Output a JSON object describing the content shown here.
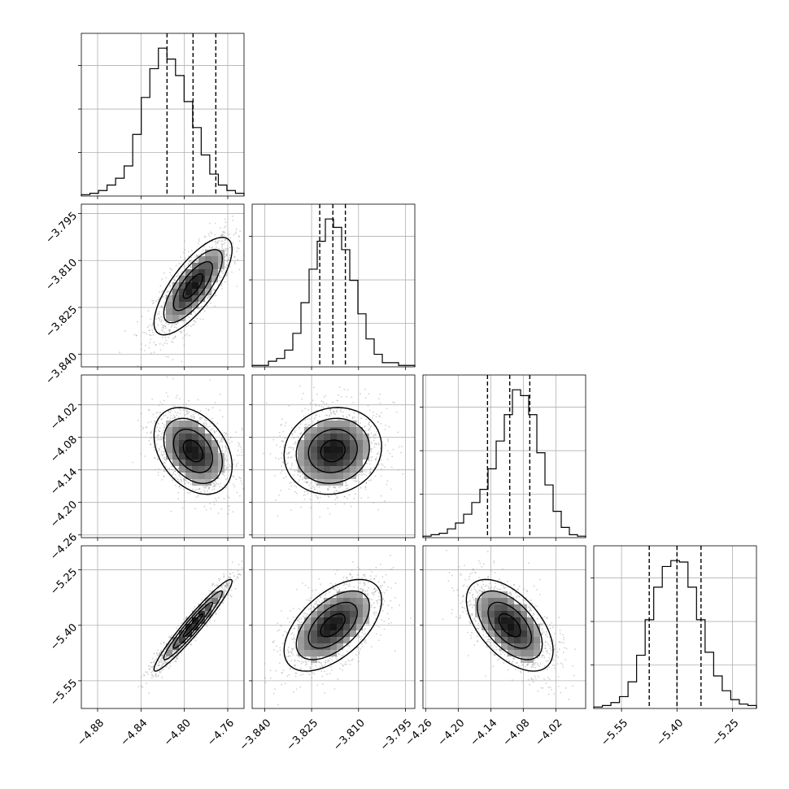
{
  "chart_data": {
    "type": "corner",
    "grid": true,
    "parameters": [
      {
        "range": [
          -4.895,
          -4.745
        ],
        "median": -4.792,
        "quantiles": [
          -4.816,
          -4.792,
          -4.771
        ],
        "ticks": [
          -4.88,
          -4.84,
          -4.8,
          -4.76
        ],
        "tick_labels": [
          "−4.88",
          "−4.84",
          "−4.80",
          "−4.76"
        ],
        "hist_bin_edges_count": 20,
        "hist_counts": [
          1,
          2,
          4,
          8,
          13,
          22,
          45,
          72,
          93,
          108,
          100,
          88,
          69,
          50,
          30,
          16,
          8,
          4,
          2
        ]
      },
      {
        "range": [
          -3.844,
          -3.792
        ],
        "median": -3.8182,
        "quantiles": [
          -3.8224,
          -3.8182,
          -3.8142
        ],
        "ticks": [
          -3.84,
          -3.825,
          -3.81,
          -3.795
        ],
        "tick_labels": [
          "−3.840",
          "−3.825",
          "−3.810",
          "−3.795"
        ],
        "hist_counts": [
          1,
          1,
          4,
          6,
          12,
          24,
          46,
          70,
          90,
          106,
          100,
          84,
          62,
          38,
          20,
          9,
          3,
          3,
          1,
          1
        ]
      },
      {
        "range": [
          -4.265,
          -3.965
        ],
        "median": -4.105,
        "quantiles": [
          -4.146,
          -4.105,
          -4.068
        ],
        "ticks": [
          -4.26,
          -4.2,
          -4.14,
          -4.08,
          -4.02
        ],
        "tick_labels": [
          "−4.26",
          "−4.20",
          "−4.14",
          "−4.08",
          "−4.02"
        ],
        "hist_counts": [
          1,
          2,
          3,
          6,
          10,
          16,
          24,
          33,
          47,
          66,
          84,
          101,
          97,
          84,
          58,
          36,
          18,
          7,
          2,
          1
        ]
      },
      {
        "range": [
          -5.625,
          -5.185
        ],
        "median": -5.4,
        "quantiles": [
          -5.475,
          -5.4,
          -5.335
        ],
        "ticks": [
          -5.55,
          -5.4,
          -5.25
        ],
        "tick_labels": [
          "−5.55",
          "−5.40",
          "−5.25"
        ],
        "hist_counts": [
          1,
          2,
          4,
          8,
          18,
          36,
          60,
          82,
          96,
          100,
          99,
          82,
          60,
          38,
          22,
          12,
          6,
          3,
          2
        ]
      }
    ],
    "pairs": [
      {
        "row": 1,
        "col": 0,
        "correlation": 0.75,
        "sigma": [
          0.018,
          0.0078
        ]
      },
      {
        "row": 2,
        "col": 0,
        "correlation": -0.35,
        "sigma": [
          0.018,
          0.04
        ]
      },
      {
        "row": 2,
        "col": 1,
        "correlation": 0.1,
        "sigma": [
          0.0078,
          0.04
        ]
      },
      {
        "row": 3,
        "col": 0,
        "correlation": 0.96,
        "sigma": [
          0.018,
          0.062
        ]
      },
      {
        "row": 3,
        "col": 1,
        "correlation": 0.55,
        "sigma": [
          0.0078,
          0.062
        ]
      },
      {
        "row": 3,
        "col": 2,
        "correlation": -0.55,
        "sigma": [
          0.04,
          0.062
        ]
      }
    ],
    "contour_levels_sigma": [
      0.5,
      1.0,
      1.5,
      2.0
    ]
  }
}
